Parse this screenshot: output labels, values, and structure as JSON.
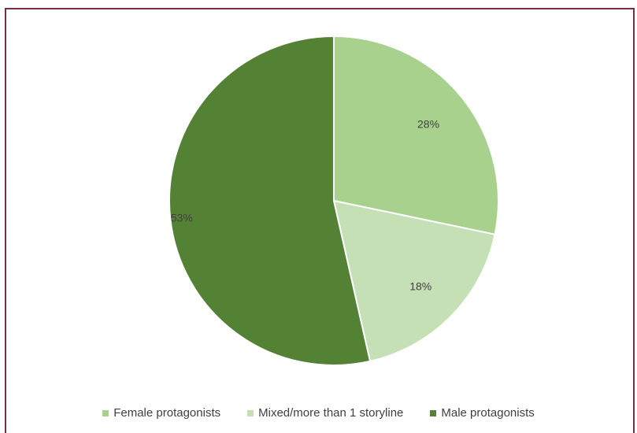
{
  "chart_data": {
    "type": "pie",
    "title": "",
    "slices": [
      {
        "label": "Female protagonists",
        "value": 28,
        "display": "28%",
        "color": "#a9d18e"
      },
      {
        "label": "Mixed/more than 1 storyline",
        "value": 18,
        "display": "18%",
        "color": "#c5e0b4"
      },
      {
        "label": "Male protagonists",
        "value": 53,
        "display": "53%",
        "color": "#548235"
      }
    ],
    "start_angle": "12 o'clock",
    "direction": "clockwise",
    "legend_position": "bottom"
  },
  "colors": {
    "frame_border": "#7a2e3a",
    "label_text": "#404040",
    "slice_separator": "#ffffff"
  }
}
